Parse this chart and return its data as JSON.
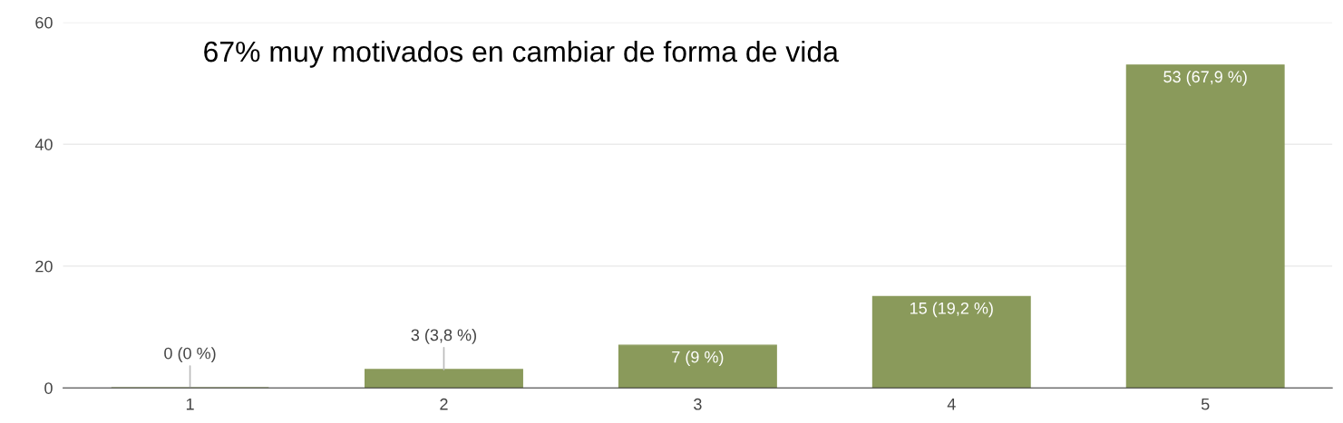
{
  "chart_data": {
    "type": "bar",
    "categories": [
      "1",
      "2",
      "3",
      "4",
      "5"
    ],
    "values": [
      0,
      3,
      7,
      15,
      53
    ],
    "value_labels": [
      "0 (0 %)",
      "3 (3,8 %)",
      "7 (9 %)",
      "15 (19,2 %)",
      "53 (67,9 %)"
    ],
    "color": "#8a9a5b",
    "ylim": [
      0,
      60
    ],
    "yticks": [
      0,
      20,
      40,
      60
    ],
    "grid": "y",
    "annotations": [
      "67% muy motivados en cambiar de forma de vida"
    ]
  }
}
